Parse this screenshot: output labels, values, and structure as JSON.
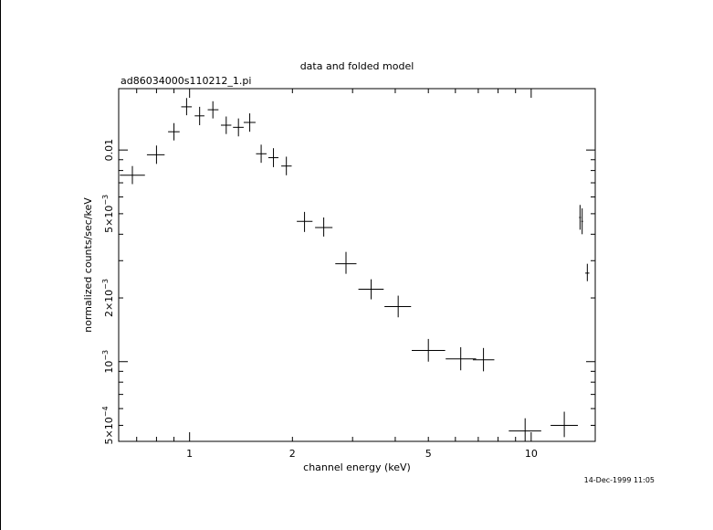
{
  "title": "data and folded model",
  "file_label": "ad86034000s110212_1.pi",
  "timestamp": "14-Dec-1999 11:05",
  "chart_data": {
    "type": "scatter",
    "title": "data and folded model",
    "xlabel": "channel energy (keV)",
    "ylabel": "normalized counts/sec/keV",
    "xscale": "log",
    "yscale": "log",
    "xlim": [
      0.62,
      15.4
    ],
    "ylim": [
      0.00042,
      0.0195
    ],
    "grid": false,
    "x_tick_labels": [
      {
        "value": 1,
        "label": "1"
      },
      {
        "value": 2,
        "label": "2"
      },
      {
        "value": 5,
        "label": "5"
      },
      {
        "value": 10,
        "label": "10"
      }
    ],
    "y_tick_labels": [
      {
        "value": 0.0005,
        "mant": "5×10",
        "exp": "−4"
      },
      {
        "value": 0.001,
        "mant": "10",
        "exp": "−3"
      },
      {
        "value": 0.002,
        "mant": "2×10",
        "exp": "−3"
      },
      {
        "value": 0.005,
        "mant": "5×10",
        "exp": "−3"
      },
      {
        "value": 0.01,
        "mant": "0.01",
        "exp": ""
      }
    ],
    "points": [
      {
        "x": 0.68,
        "xlo": 0.625,
        "xhi": 0.74,
        "y": 0.0076,
        "ylo": 0.0069,
        "yhi": 0.0084
      },
      {
        "x": 0.8,
        "xlo": 0.75,
        "xhi": 0.845,
        "y": 0.0095,
        "ylo": 0.0086,
        "yhi": 0.0105
      },
      {
        "x": 0.9,
        "xlo": 0.865,
        "xhi": 0.935,
        "y": 0.0122,
        "ylo": 0.0111,
        "yhi": 0.0134
      },
      {
        "x": 0.98,
        "xlo": 0.945,
        "xhi": 1.015,
        "y": 0.016,
        "ylo": 0.0146,
        "yhi": 0.0176
      },
      {
        "x": 1.07,
        "xlo": 1.035,
        "xhi": 1.105,
        "y": 0.0145,
        "ylo": 0.0131,
        "yhi": 0.016
      },
      {
        "x": 1.17,
        "xlo": 1.13,
        "xhi": 1.215,
        "y": 0.0155,
        "ylo": 0.0141,
        "yhi": 0.017
      },
      {
        "x": 1.28,
        "xlo": 1.235,
        "xhi": 1.325,
        "y": 0.0131,
        "ylo": 0.0119,
        "yhi": 0.0144
      },
      {
        "x": 1.39,
        "xlo": 1.34,
        "xhi": 1.44,
        "y": 0.0128,
        "ylo": 0.0116,
        "yhi": 0.0141
      },
      {
        "x": 1.5,
        "xlo": 1.44,
        "xhi": 1.56,
        "y": 0.0135,
        "ylo": 0.0122,
        "yhi": 0.0149
      },
      {
        "x": 1.62,
        "xlo": 1.565,
        "xhi": 1.68,
        "y": 0.0096,
        "ylo": 0.0087,
        "yhi": 0.0106
      },
      {
        "x": 1.76,
        "xlo": 1.7,
        "xhi": 1.82,
        "y": 0.0092,
        "ylo": 0.0083,
        "yhi": 0.0102
      },
      {
        "x": 1.92,
        "xlo": 1.855,
        "xhi": 1.99,
        "y": 0.0084,
        "ylo": 0.0076,
        "yhi": 0.0093
      },
      {
        "x": 2.17,
        "xlo": 2.06,
        "xhi": 2.29,
        "y": 0.0046,
        "ylo": 0.0041,
        "yhi": 0.0051
      },
      {
        "x": 2.47,
        "xlo": 2.33,
        "xhi": 2.62,
        "y": 0.0043,
        "ylo": 0.0039,
        "yhi": 0.0048
      },
      {
        "x": 2.87,
        "xlo": 2.67,
        "xhi": 3.08,
        "y": 0.0029,
        "ylo": 0.0026,
        "yhi": 0.0033
      },
      {
        "x": 3.4,
        "xlo": 3.12,
        "xhi": 3.7,
        "y": 0.0022,
        "ylo": 0.00197,
        "yhi": 0.00245
      },
      {
        "x": 4.08,
        "xlo": 3.72,
        "xhi": 4.45,
        "y": 0.00182,
        "ylo": 0.00162,
        "yhi": 0.00205
      },
      {
        "x": 5.0,
        "xlo": 4.47,
        "xhi": 5.6,
        "y": 0.00113,
        "ylo": 0.001,
        "yhi": 0.00128
      },
      {
        "x": 6.22,
        "xlo": 5.62,
        "xhi": 6.9,
        "y": 0.00103,
        "ylo": 0.00091,
        "yhi": 0.00117
      },
      {
        "x": 7.25,
        "xlo": 6.75,
        "xhi": 7.8,
        "y": 0.00102,
        "ylo": 0.0009,
        "yhi": 0.00116
      },
      {
        "x": 9.6,
        "xlo": 8.6,
        "xhi": 10.7,
        "y": 0.00047,
        "ylo": 0.00042,
        "yhi": 0.00054
      },
      {
        "x": 12.5,
        "xlo": 11.4,
        "xhi": 13.7,
        "y": 0.0005,
        "ylo": 0.00044,
        "yhi": 0.00058
      },
      {
        "x": 13.9,
        "xlo": 13.82,
        "xhi": 13.98,
        "y": 0.0048,
        "ylo": 0.0042,
        "yhi": 0.0055
      },
      {
        "x": 14.1,
        "xlo": 14.02,
        "xhi": 14.18,
        "y": 0.0046,
        "ylo": 0.004,
        "yhi": 0.0053
      },
      {
        "x": 14.6,
        "xlo": 14.4,
        "xhi": 14.8,
        "y": 0.00262,
        "ylo": 0.0024,
        "yhi": 0.0029
      }
    ]
  }
}
